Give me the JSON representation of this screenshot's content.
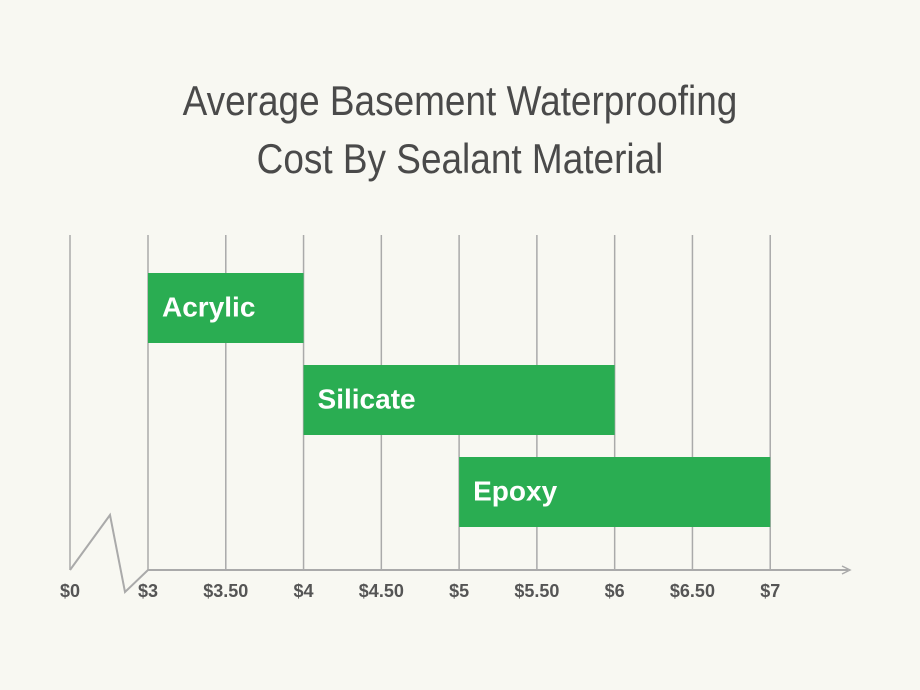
{
  "chart_data": {
    "type": "range-bar",
    "title": "Average Basement Waterproofing Cost By Sealant Material",
    "categories": [
      "Acrylic",
      "Silicate",
      "Epoxy"
    ],
    "low": [
      3,
      4,
      5
    ],
    "high": [
      4,
      6,
      7
    ],
    "color": "#2aad52",
    "xlim": [
      3,
      7.5
    ],
    "axis_break": true,
    "xticks": [
      {
        "value": 0,
        "label": "$0"
      },
      {
        "value": 3,
        "label": "$3"
      },
      {
        "value": 3.5,
        "label": "$3.50"
      },
      {
        "value": 4,
        "label": "$4"
      },
      {
        "value": 4.5,
        "label": "$4.50"
      },
      {
        "value": 5,
        "label": "$5"
      },
      {
        "value": 5.5,
        "label": "$5.50"
      },
      {
        "value": 6,
        "label": "$6"
      },
      {
        "value": 6.5,
        "label": "$6.50"
      },
      {
        "value": 7,
        "label": "$7"
      }
    ],
    "grid": true
  }
}
